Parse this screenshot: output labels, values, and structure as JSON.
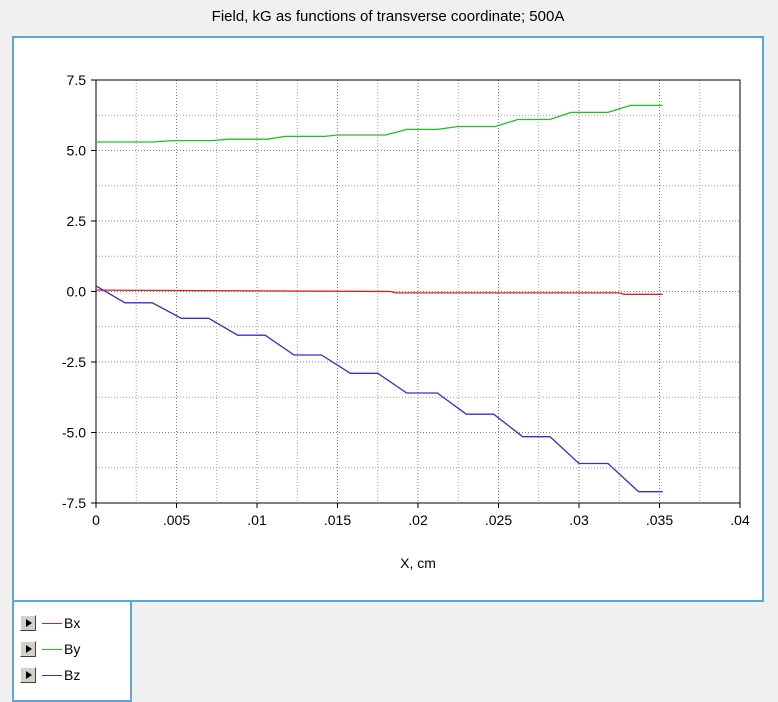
{
  "chart_data": {
    "type": "line",
    "title": "Field, kG as functions of transverse coordinate; 500A",
    "xlabel": "X, cm",
    "ylabel": "",
    "xlim": [
      0,
      0.04
    ],
    "ylim": [
      -7.5,
      7.5
    ],
    "x_ticks": [
      0,
      0.005,
      0.01,
      0.015,
      0.02,
      0.025,
      0.03,
      0.035,
      0.04
    ],
    "x_tick_labels": [
      "0",
      ".005",
      ".01",
      ".015",
      ".02",
      ".025",
      ".03",
      ".035",
      ".04"
    ],
    "y_ticks": [
      -7.5,
      -5.0,
      -2.5,
      0.0,
      2.5,
      5.0,
      7.5
    ],
    "y_tick_labels": [
      "-7.5",
      "-5.0",
      "-2.5",
      "0.0",
      "2.5",
      "5.0",
      "7.5"
    ],
    "grid": true,
    "legend_placement": "bottom-left",
    "series": [
      {
        "name": "Bx",
        "color": "#e02020",
        "points": [
          [
            0,
            0.05
          ],
          [
            0.0183,
            0.0
          ],
          [
            0.0186,
            -0.05
          ],
          [
            0.0325,
            -0.05
          ],
          [
            0.0328,
            -0.1
          ],
          [
            0.0352,
            -0.1
          ]
        ]
      },
      {
        "name": "By",
        "color": "#20c020",
        "points": [
          [
            0,
            5.3
          ],
          [
            0.0035,
            5.3
          ],
          [
            0.0047,
            5.35
          ],
          [
            0.0072,
            5.35
          ],
          [
            0.0082,
            5.4
          ],
          [
            0.0107,
            5.4
          ],
          [
            0.0117,
            5.5
          ],
          [
            0.0142,
            5.5
          ],
          [
            0.015,
            5.55
          ],
          [
            0.018,
            5.55
          ],
          [
            0.0193,
            5.75
          ],
          [
            0.0212,
            5.75
          ],
          [
            0.0225,
            5.85
          ],
          [
            0.0248,
            5.85
          ],
          [
            0.0262,
            6.1
          ],
          [
            0.0282,
            6.1
          ],
          [
            0.0295,
            6.35
          ],
          [
            0.0318,
            6.35
          ],
          [
            0.0332,
            6.6
          ],
          [
            0.0352,
            6.6
          ]
        ]
      },
      {
        "name": "Bz",
        "color": "#3030d0",
        "points": [
          [
            0,
            0.2
          ],
          [
            0.0018,
            -0.4
          ],
          [
            0.0035,
            -0.4
          ],
          [
            0.0053,
            -0.95
          ],
          [
            0.007,
            -0.95
          ],
          [
            0.0088,
            -1.55
          ],
          [
            0.0105,
            -1.55
          ],
          [
            0.0123,
            -2.25
          ],
          [
            0.014,
            -2.25
          ],
          [
            0.0158,
            -2.9
          ],
          [
            0.0175,
            -2.9
          ],
          [
            0.0193,
            -3.6
          ],
          [
            0.0212,
            -3.6
          ],
          [
            0.023,
            -4.35
          ],
          [
            0.0247,
            -4.35
          ],
          [
            0.0265,
            -5.15
          ],
          [
            0.0282,
            -5.15
          ],
          [
            0.03,
            -6.1
          ],
          [
            0.0318,
            -6.1
          ],
          [
            0.0337,
            -7.1
          ],
          [
            0.0352,
            -7.1
          ]
        ]
      }
    ]
  }
}
